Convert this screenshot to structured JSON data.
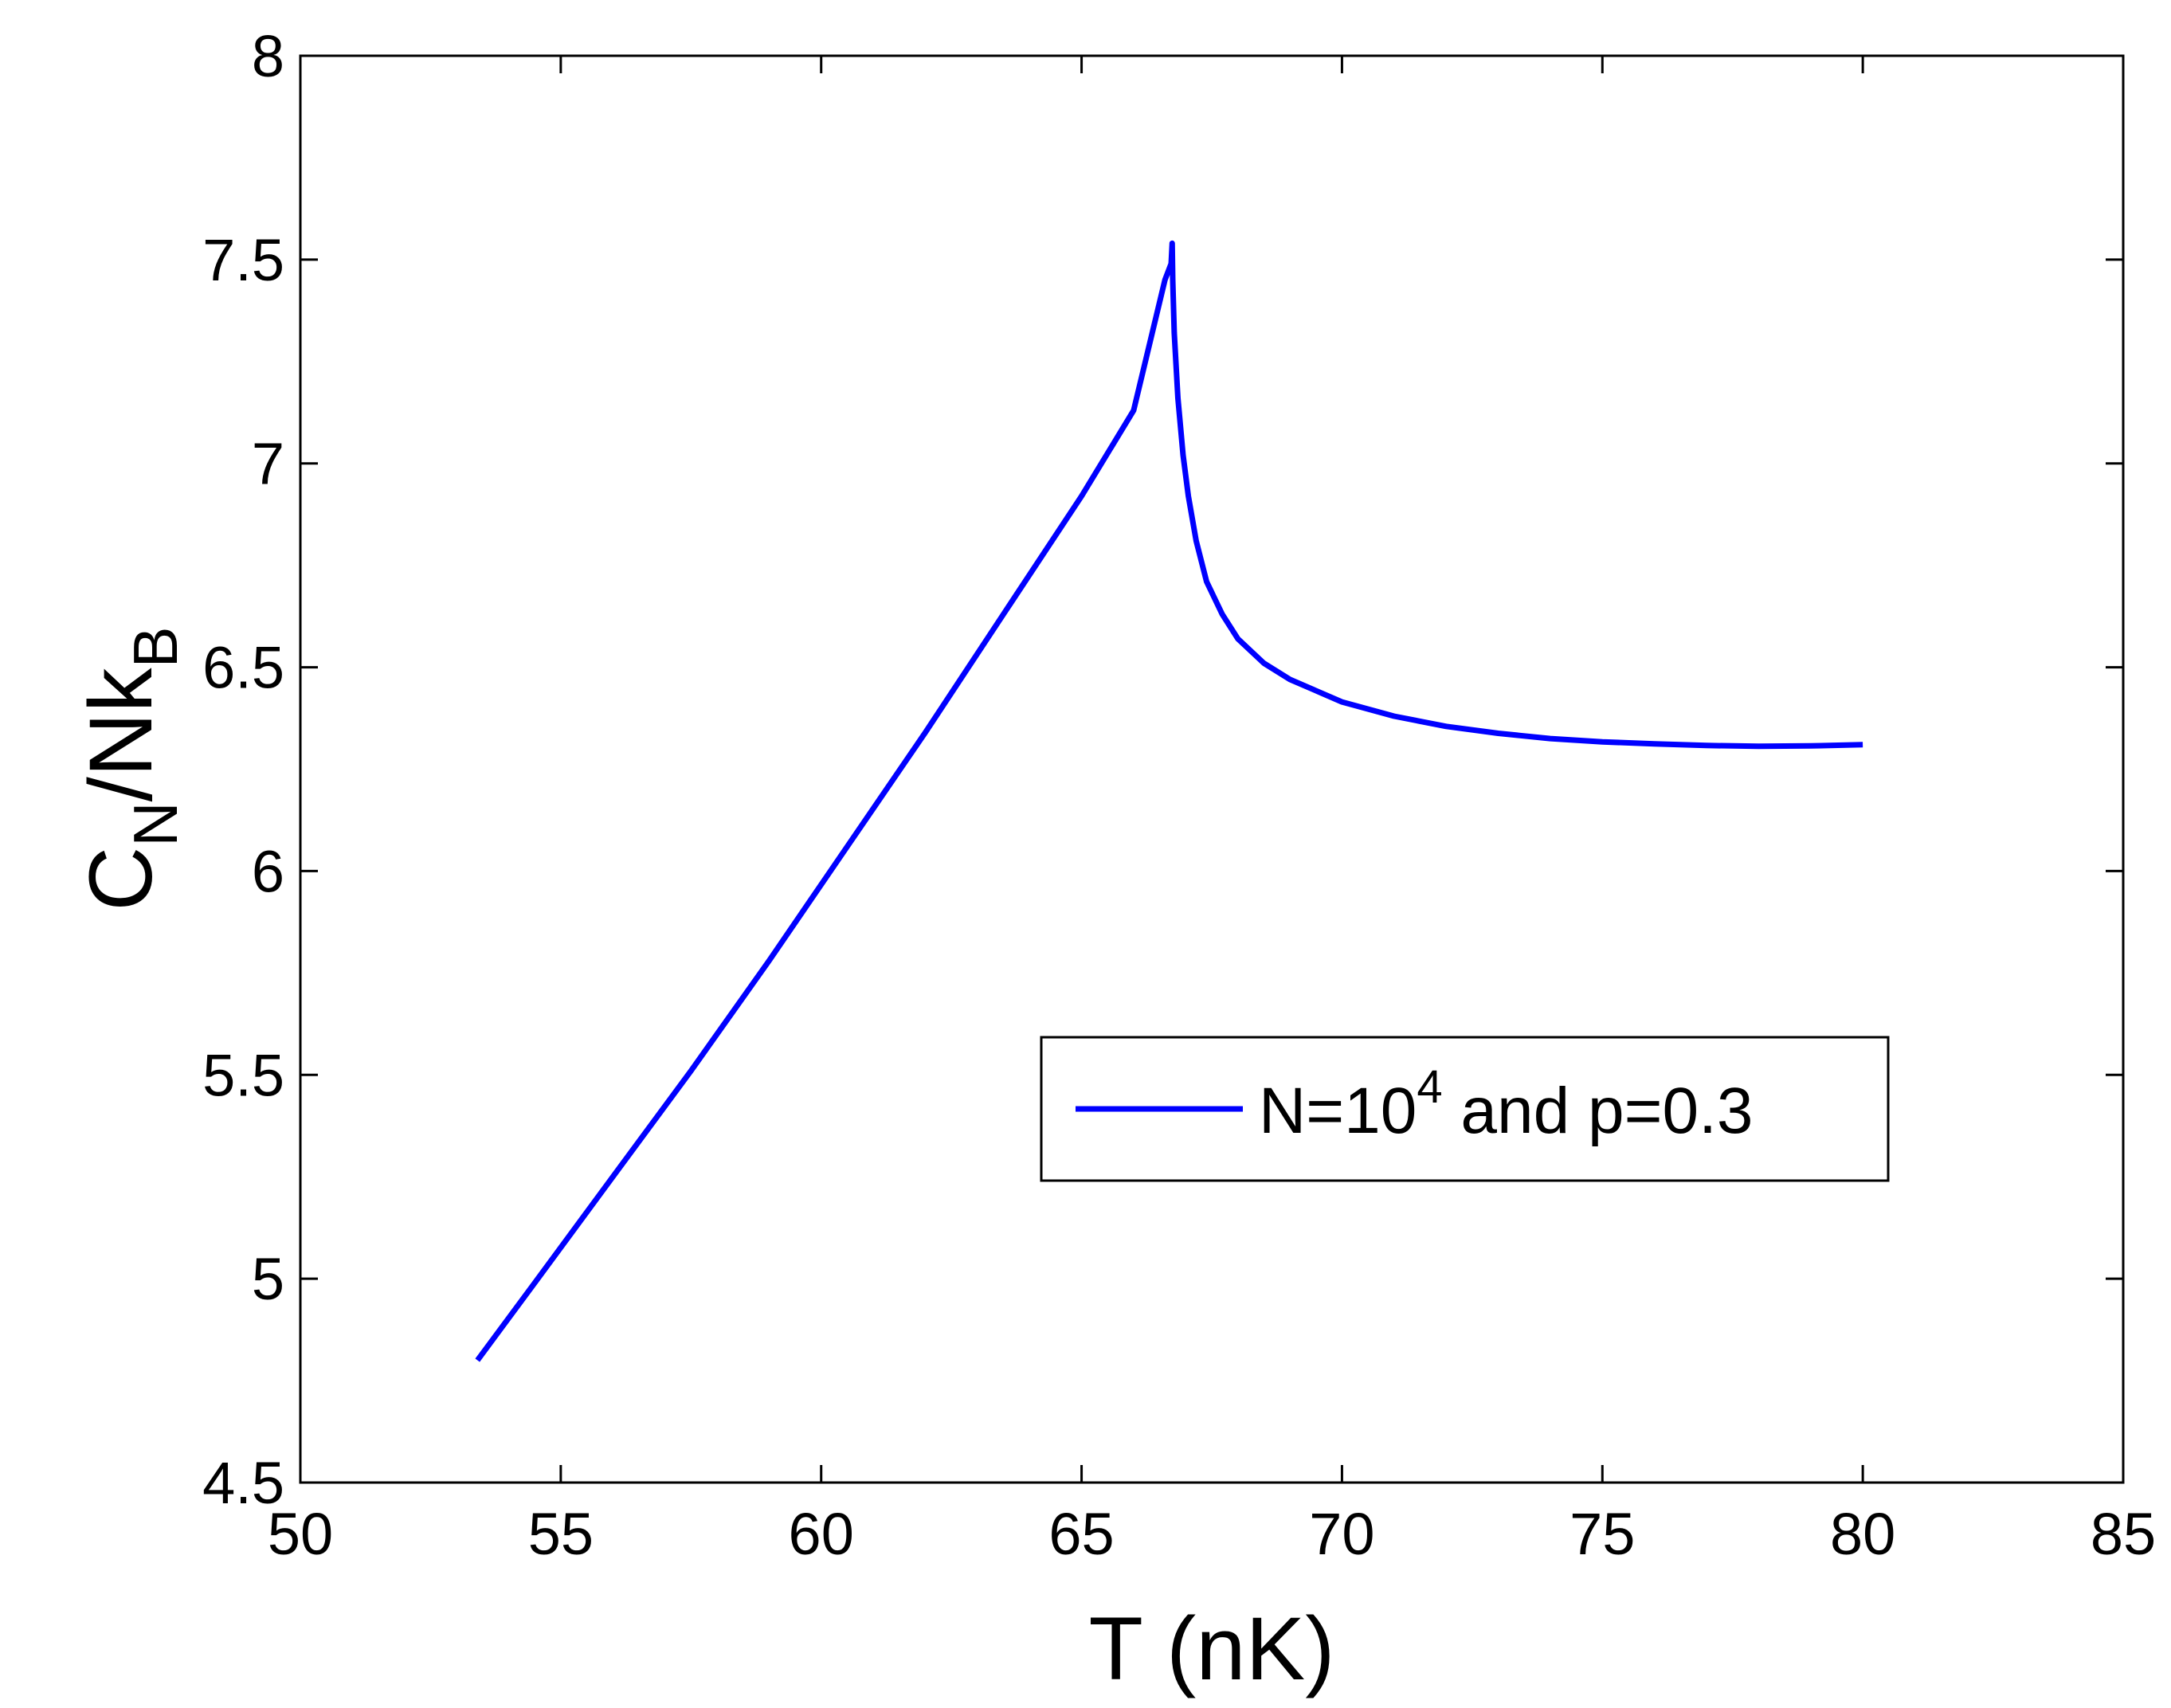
{
  "chart_data": {
    "type": "line",
    "title": "",
    "xlabel": "T (nK)",
    "ylabel": {
      "main": "C",
      "sub1": "N",
      "mid": "/Nk",
      "sub2": "B"
    },
    "xlim": [
      50,
      85
    ],
    "ylim": [
      4.5,
      8
    ],
    "xticks": [
      50,
      55,
      60,
      65,
      70,
      75,
      80,
      85
    ],
    "yticks": [
      4.5,
      5,
      5.5,
      6,
      6.5,
      7,
      7.5,
      8
    ],
    "xtick_labels": [
      "50",
      "55",
      "60",
      "65",
      "70",
      "75",
      "80",
      "85"
    ],
    "ytick_labels": [
      "4.5",
      "5",
      "5.5",
      "6",
      "6.5",
      "7",
      "7.5",
      "8"
    ],
    "grid": false,
    "legend_position": "right-middle",
    "series": [
      {
        "name": "N=10^4 and p=0.3",
        "legend": {
          "prefix": "N=10",
          "sup": "4",
          "suffix": " and p=0.3"
        },
        "color": "#0000ff",
        "x": [
          53.4,
          54.5,
          56.0,
          57.5,
          59.0,
          60.5,
          62.0,
          63.5,
          65.0,
          66.0,
          66.6,
          66.72,
          66.74,
          66.75,
          66.78,
          66.85,
          66.95,
          67.05,
          67.2,
          67.4,
          67.7,
          68.0,
          68.5,
          69.0,
          70.0,
          71.0,
          72.0,
          73.0,
          74.0,
          75.0,
          76.0,
          77.0,
          78.0,
          79.0,
          80.0
        ],
        "y": [
          4.8,
          4.99,
          5.25,
          5.51,
          5.78,
          6.06,
          6.34,
          6.63,
          6.92,
          7.13,
          7.45,
          7.49,
          7.54,
          7.45,
          7.32,
          7.16,
          7.02,
          6.92,
          6.81,
          6.71,
          6.63,
          6.57,
          6.51,
          6.47,
          6.415,
          6.38,
          6.355,
          6.338,
          6.325,
          6.317,
          6.312,
          6.308,
          6.306,
          6.307,
          6.31
        ]
      }
    ]
  }
}
